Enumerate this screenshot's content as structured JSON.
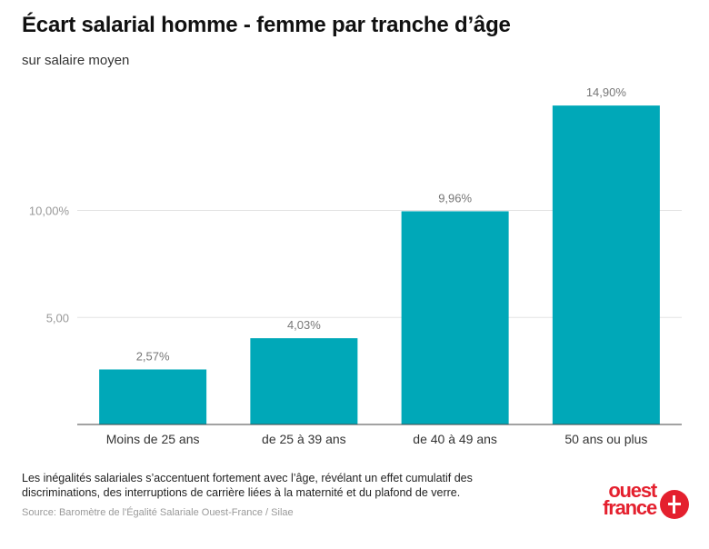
{
  "title": "Écart salarial homme - femme par tranche d’âge",
  "subtitle": "sur salaire moyen",
  "note": "Les inégalités salariales s’accentuent fortement avec l’âge, révélant un effet cumulatif des discriminations, des interruptions de carrière liées à la maternité et du plafond de verre.",
  "source": "Source: Baromètre de l'Égalité Salariale Ouest-France / Silae",
  "logo": {
    "line1": "ouest",
    "line2": "france"
  },
  "colors": {
    "bar": "#00a8b8",
    "brand": "#e4202e"
  },
  "chart_data": {
    "type": "bar",
    "title": "Écart salarial homme - femme par tranche d’âge",
    "subtitle": "sur salaire moyen",
    "categories": [
      "Moins de 25 ans",
      "de 25 à 39 ans",
      "de 40 à 49 ans",
      "50 ans ou plus"
    ],
    "values": [
      2.57,
      4.03,
      9.96,
      14.9
    ],
    "value_labels": [
      "2,57%",
      "4,03%",
      "9,96%",
      "14,90%"
    ],
    "yticks": [
      5,
      10
    ],
    "ytick_labels": [
      "5,00",
      "10,00%"
    ],
    "ylim": [
      0,
      15.5
    ],
    "grid": true,
    "xlabel": "",
    "ylabel": ""
  }
}
